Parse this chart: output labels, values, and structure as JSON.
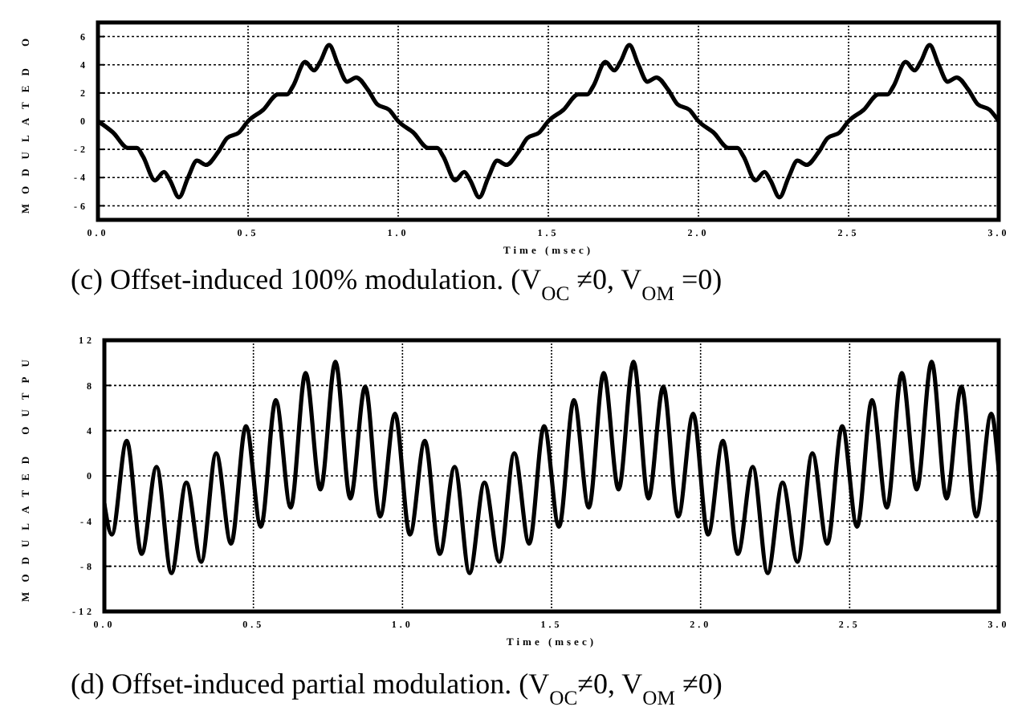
{
  "chart_data": [
    {
      "type": "line",
      "xlabel": "Time (msec)",
      "ylabel": "MODULATED O",
      "annotations": [
        "(c) Offset-induced 100% modulation. (V$_{OC}$ ≠0, V$_{OM}$ =0)"
      ],
      "xlim": [
        0,
        3
      ],
      "ylim": [
        -7,
        7
      ],
      "xticks": [
        {
          "value": 0,
          "label": "0.0"
        },
        {
          "value": 0.5,
          "label": "0.5"
        },
        {
          "value": 1,
          "label": "1.0"
        },
        {
          "value": 1.5,
          "label": "1.5"
        },
        {
          "value": 2,
          "label": "2.0"
        },
        {
          "value": 2.5,
          "label": "2.5"
        },
        {
          "value": 3,
          "label": "3.0"
        }
      ],
      "yticks": [
        -6,
        -4,
        -2,
        0,
        2,
        4,
        6
      ],
      "grid": true,
      "line_style": "solid",
      "x": [
        0,
        0.05,
        0.1,
        0.13,
        0.15,
        0.19,
        0.22,
        0.24,
        0.27,
        0.3,
        0.33,
        0.36,
        0.4,
        0.43,
        0.47,
        0.5,
        0.55,
        0.6,
        0.63,
        0.65,
        0.69,
        0.72,
        0.74,
        0.77,
        0.8,
        0.83,
        0.86,
        0.9,
        0.93,
        0.97,
        1,
        1.05,
        1.1,
        1.13,
        1.15,
        1.19,
        1.22,
        1.24,
        1.27,
        1.3,
        1.33,
        1.36,
        1.4,
        1.43,
        1.47,
        1.5,
        1.55,
        1.6,
        1.63,
        1.65,
        1.69,
        1.72,
        1.74,
        1.77,
        1.8,
        1.83,
        1.86,
        1.9,
        1.93,
        1.97,
        2,
        2.05,
        2.1,
        2.13,
        2.15,
        2.19,
        2.22,
        2.24,
        2.27,
        2.3,
        2.33,
        2.36,
        2.4,
        2.43,
        2.47,
        2.5,
        2.55,
        2.6,
        2.63,
        2.65,
        2.69,
        2.72,
        2.74,
        2.77,
        2.8,
        2.83,
        2.86,
        2.9,
        2.93,
        2.97,
        3
      ],
      "series": [
        {
          "color": "#000000",
          "values": [
            0,
            -0.8,
            -1.9,
            -1.9,
            -2.5,
            -4.2,
            -3.6,
            -4.2,
            -5.4,
            -4.0,
            -2.8,
            -3.1,
            -2.2,
            -1.2,
            -0.8,
            0,
            0.8,
            1.9,
            1.9,
            2.5,
            4.2,
            3.6,
            4.2,
            5.4,
            4.0,
            2.8,
            3.1,
            2.2,
            1.2,
            0.8,
            0,
            -0.8,
            -1.9,
            -1.9,
            -2.5,
            -4.2,
            -3.6,
            -4.2,
            -5.4,
            -4.0,
            -2.8,
            -3.1,
            -2.2,
            -1.2,
            -0.8,
            0,
            0.8,
            1.9,
            1.9,
            2.5,
            4.2,
            3.6,
            4.2,
            5.4,
            4.0,
            2.8,
            3.1,
            2.2,
            1.2,
            0.8,
            0,
            -0.8,
            -1.9,
            -1.9,
            -2.5,
            -4.2,
            -3.6,
            -4.2,
            -5.4,
            -4.0,
            -2.8,
            -3.1,
            -2.2,
            -1.2,
            -0.8,
            0,
            0.8,
            1.9,
            1.9,
            2.5,
            4.2,
            3.6,
            4.2,
            5.4,
            4.0,
            2.8,
            3.1,
            2.2,
            1.2,
            0.8,
            0
          ]
        }
      ]
    },
    {
      "type": "line",
      "xlabel": "Time (msec)",
      "ylabel": "MODULATED OUTPU",
      "annotations": [
        "(d) Offset-induced partial modulation. (V$_{OC}$≠0, V$_{OM}$ ≠0)"
      ],
      "xlim": [
        0,
        3
      ],
      "ylim": [
        -12,
        12
      ],
      "xticks": [
        {
          "value": 0,
          "label": "0.0"
        },
        {
          "value": 0.5,
          "label": "0.5"
        },
        {
          "value": 1,
          "label": "1.0"
        },
        {
          "value": 1.5,
          "label": "1.5"
        },
        {
          "value": 2,
          "label": "2.0"
        },
        {
          "value": 2.5,
          "label": "2.5"
        },
        {
          "value": 3,
          "label": "3.0"
        }
      ],
      "yticks": [
        -12,
        -8,
        -4,
        0,
        4,
        8,
        12
      ],
      "grid": true,
      "line_style": "solid",
      "x": [
        0,
        0.025,
        0.075,
        0.125,
        0.175,
        0.225,
        0.275,
        0.325,
        0.375,
        0.425,
        0.475,
        0.525,
        0.575,
        0.625,
        0.675,
        0.725,
        0.775,
        0.825,
        0.875,
        0.925,
        0.975,
        1.025,
        1.075,
        1.125,
        1.175,
        1.225,
        1.275,
        1.325,
        1.375,
        1.425,
        1.475,
        1.525,
        1.575,
        1.625,
        1.675,
        1.725,
        1.775,
        1.825,
        1.875,
        1.925,
        1.975,
        2.025,
        2.075,
        2.125,
        2.175,
        2.225,
        2.275,
        2.325,
        2.375,
        2.425,
        2.475,
        2.525,
        2.575,
        2.625,
        2.675,
        2.725,
        2.775,
        2.825,
        2.875,
        2.925,
        2.975,
        3
      ],
      "series": [
        {
          "color": "#000000",
          "values": [
            -2.5,
            -5.2,
            3.1,
            -6.9,
            0.8,
            -8.6,
            -0.6,
            -7.6,
            2.0,
            -6.0,
            4.4,
            -4.5,
            6.7,
            -2.8,
            9.1,
            -1.2,
            10.1,
            -2.0,
            7.9,
            -3.6,
            5.5,
            -5.2,
            3.1,
            -6.9,
            0.8,
            -8.6,
            -0.6,
            -7.6,
            2.0,
            -6.0,
            4.4,
            -4.5,
            6.7,
            -2.8,
            9.1,
            -1.2,
            10.1,
            -2.0,
            7.9,
            -3.6,
            5.5,
            -5.2,
            3.1,
            -6.9,
            0.8,
            -8.6,
            -0.6,
            -7.6,
            2.0,
            -6.0,
            4.4,
            -4.5,
            6.7,
            -2.8,
            9.1,
            -1.2,
            10.1,
            -2.0,
            7.9,
            -3.6,
            5.5,
            0.5
          ]
        }
      ]
    }
  ]
}
